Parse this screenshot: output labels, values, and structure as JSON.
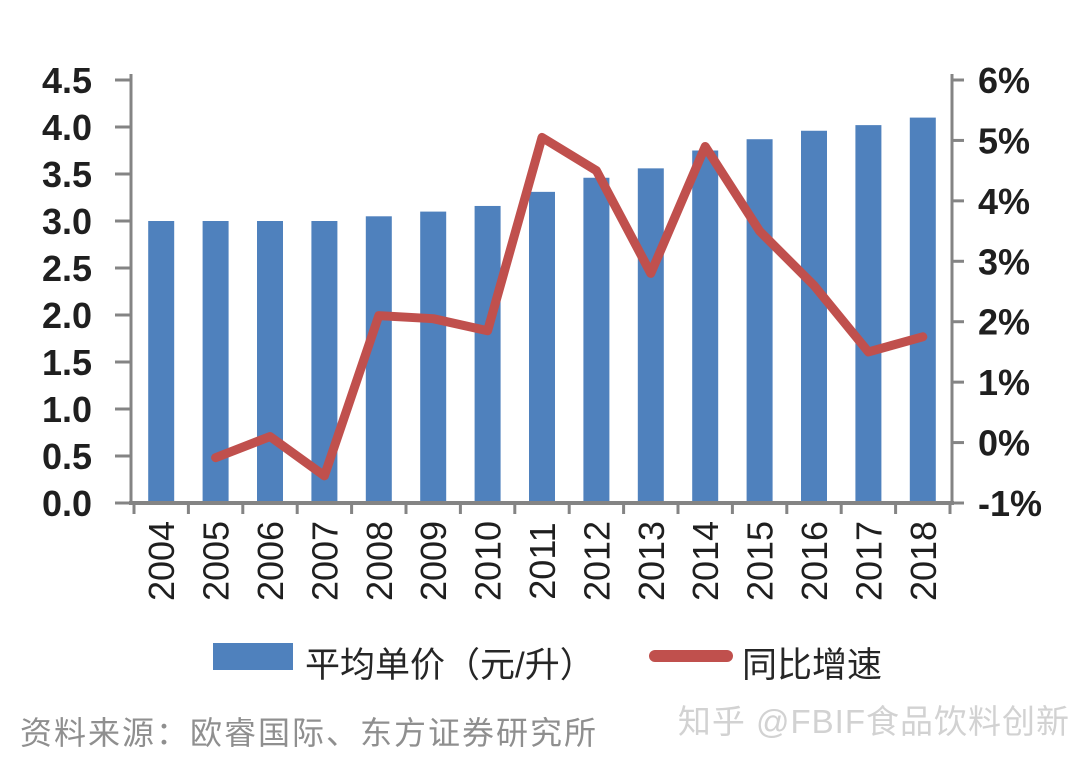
{
  "chart_data": {
    "type": "bar+line",
    "categories": [
      "2004",
      "2005",
      "2006",
      "2007",
      "2008",
      "2009",
      "2010",
      "2011",
      "2012",
      "2013",
      "2014",
      "2015",
      "2016",
      "2017",
      "2018"
    ],
    "series": [
      {
        "name": "平均单价（元/升）",
        "type": "bar",
        "axis": "left",
        "color": "#4f81bd",
        "values": [
          3.0,
          3.0,
          3.0,
          3.0,
          3.05,
          3.1,
          3.16,
          3.31,
          3.46,
          3.56,
          3.75,
          3.87,
          3.96,
          4.02,
          4.1
        ]
      },
      {
        "name": "同比增速",
        "type": "line",
        "axis": "right",
        "color": "#c0504d",
        "values": [
          null,
          -0.25,
          0.1,
          -0.55,
          2.1,
          2.05,
          1.85,
          5.05,
          4.5,
          2.8,
          4.9,
          3.5,
          2.6,
          1.5,
          1.75
        ]
      }
    ],
    "left_axis": {
      "min": 0,
      "max": 4.5,
      "step": 0.5,
      "tick_labels": [
        "0.0",
        "0.5",
        "1.0",
        "1.5",
        "2.0",
        "2.5",
        "3.0",
        "3.5",
        "4.0",
        "4.5"
      ]
    },
    "right_axis": {
      "min": -1,
      "max": 6,
      "step": 1,
      "tick_labels": [
        "-1%",
        "0%",
        "1%",
        "2%",
        "3%",
        "4%",
        "5%",
        "6%"
      ]
    },
    "legend": {
      "position": "bottom"
    },
    "grid": false
  },
  "footer": {
    "source": "资料来源：欧睿国际、东方证券研究所",
    "watermark": "知乎 @FBIF食品饮料创新"
  },
  "colors": {
    "bar": "#4f81bd",
    "line": "#c0504d",
    "axis": "#848484",
    "tick_text": "#1f1f1f",
    "year_text": "#1f1f1f",
    "source_text": "#8f8f8f",
    "watermark_text": "#d2d2d2"
  }
}
